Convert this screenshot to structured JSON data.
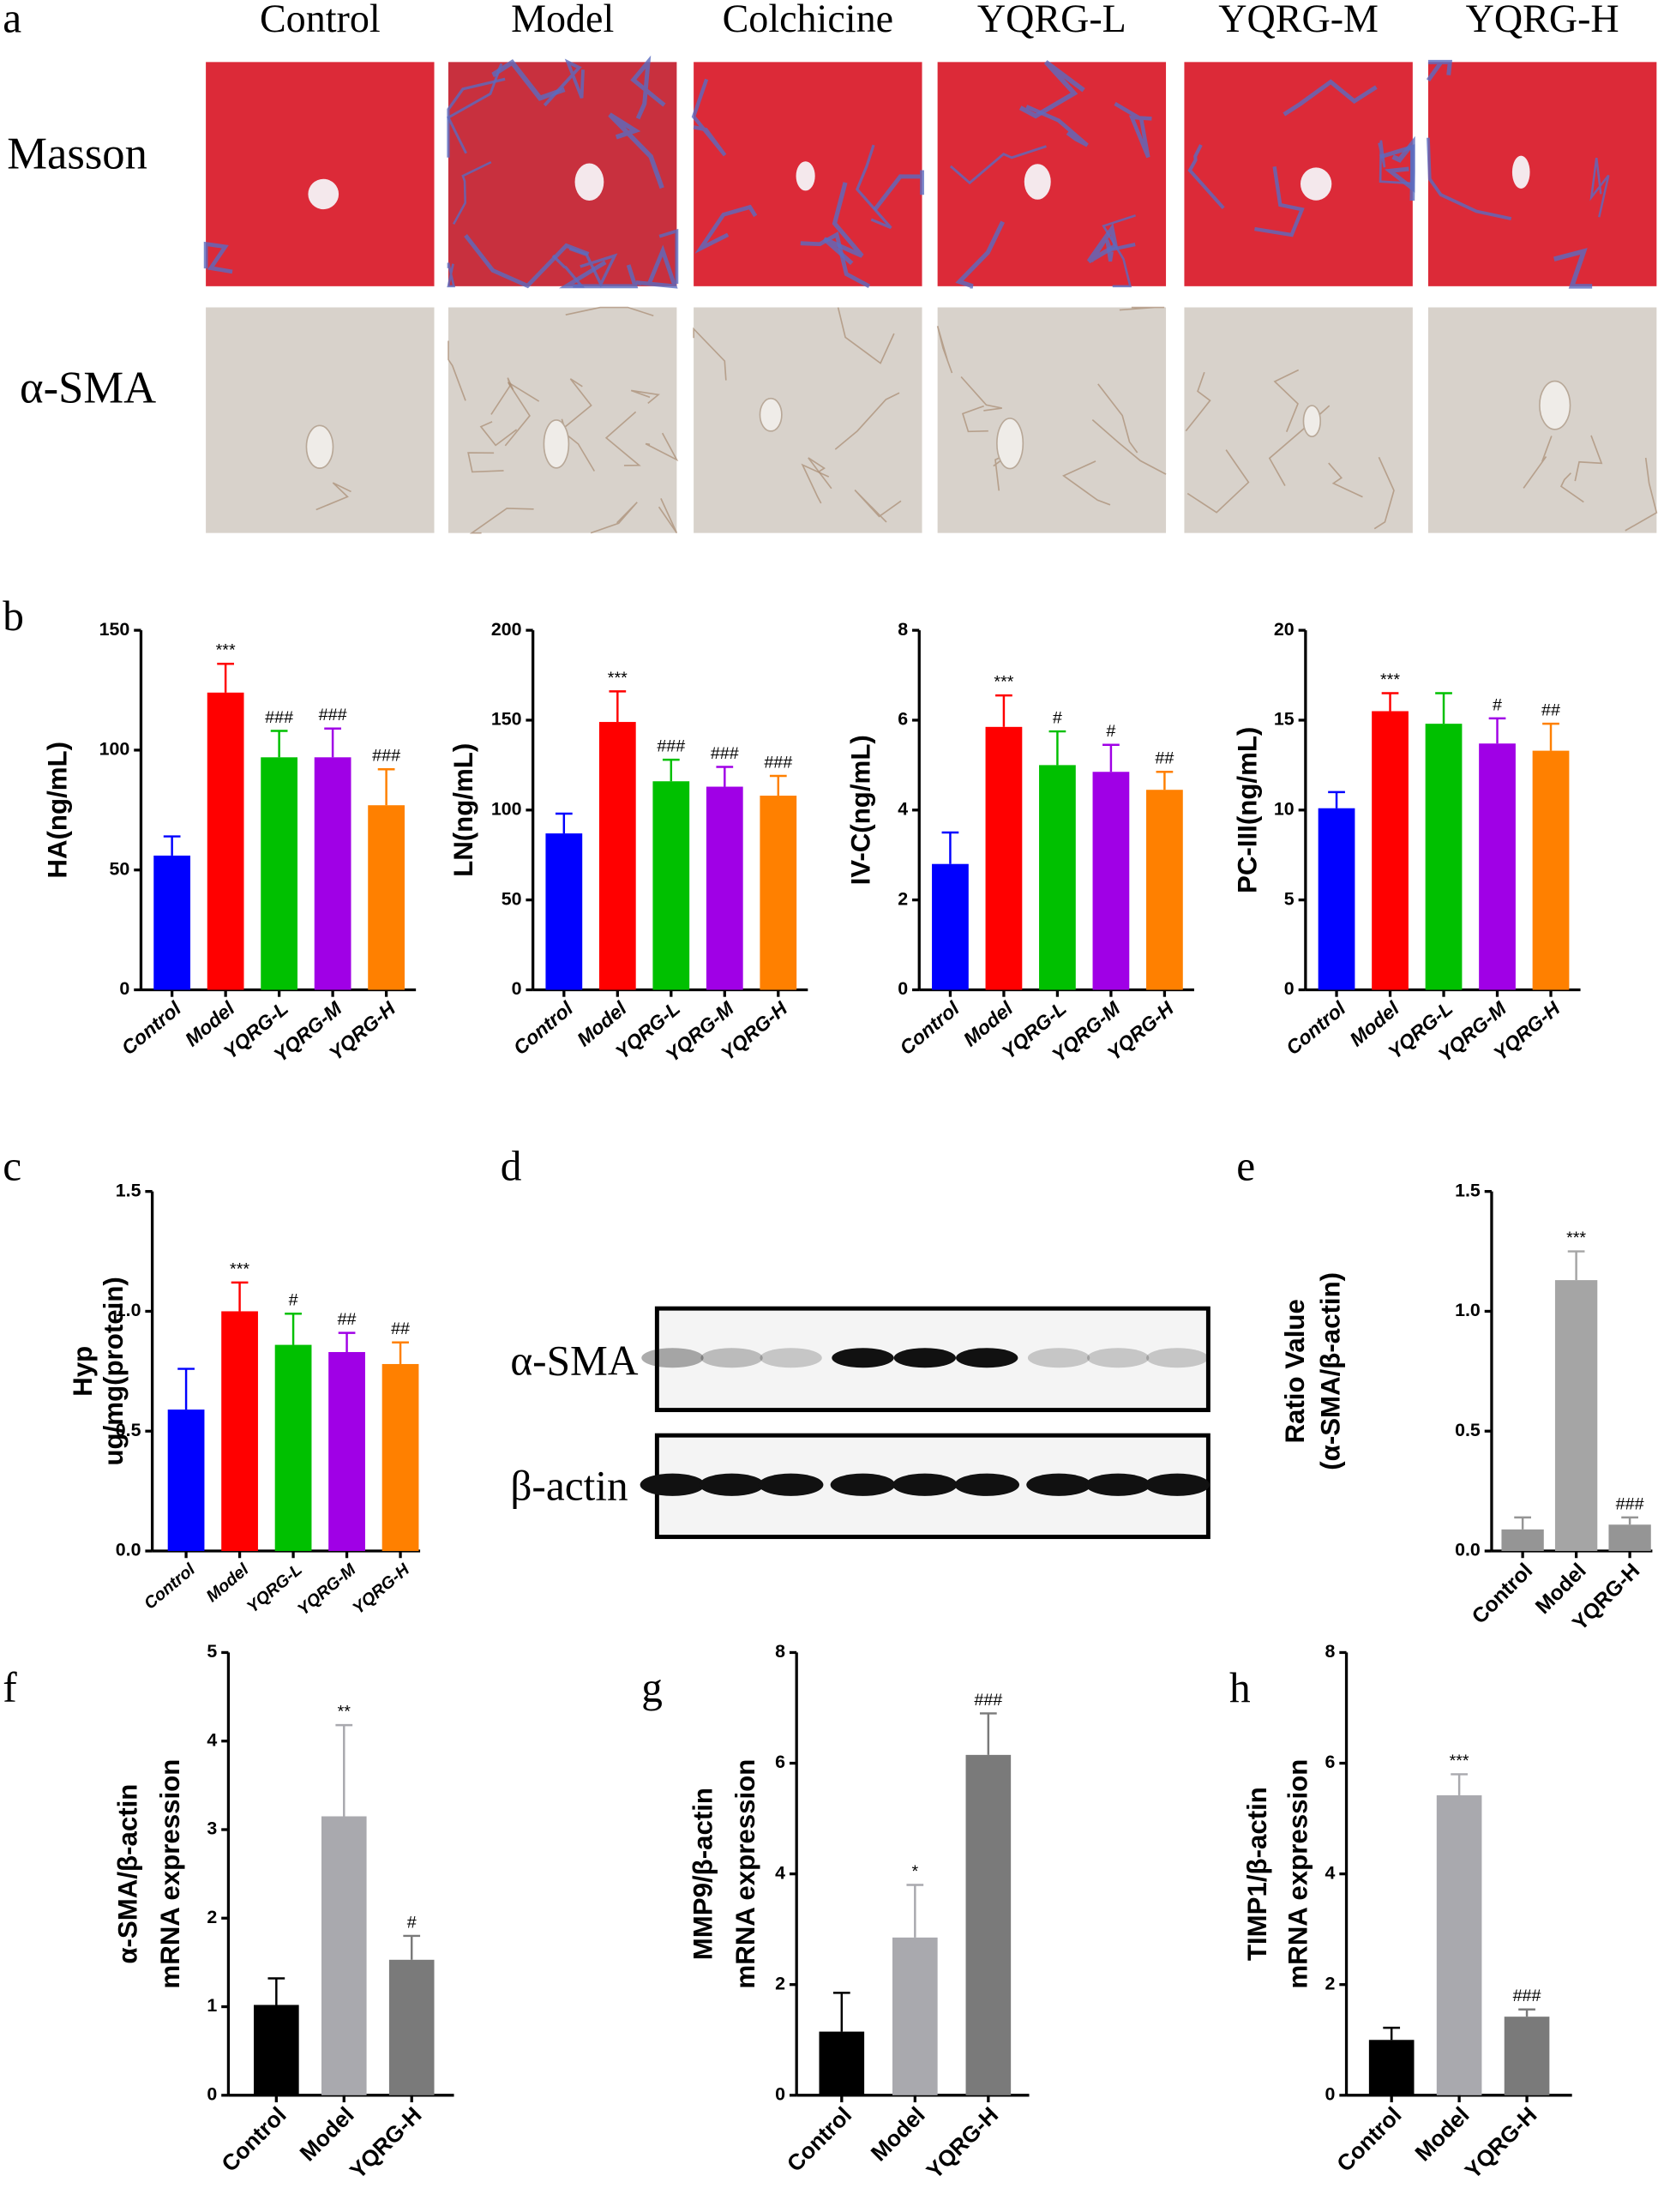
{
  "panel_labels": [
    "a",
    "b",
    "c",
    "d",
    "e",
    "f",
    "g",
    "h"
  ],
  "histology": {
    "columns": [
      "Control",
      "Model",
      "Colchicine",
      "YQRG-L",
      "YQRG-M",
      "YQRG-H"
    ],
    "rows": [
      "Masson",
      "α-SMA"
    ]
  },
  "western_blot": {
    "rows": [
      "α-SMA",
      "β-actin"
    ]
  },
  "chart_data": [
    {
      "type": "bar",
      "ylabel": [
        "HA(ng/mL)"
      ],
      "categories": [
        "Control",
        "Model",
        "YQRG-L",
        "YQRG-M",
        "YQRG-H"
      ],
      "values": [
        56,
        124,
        97,
        97,
        77
      ],
      "errors": [
        8,
        12,
        11,
        12,
        15
      ],
      "annotations": [
        null,
        "***",
        "###",
        "###",
        "###"
      ],
      "colors": [
        "#0000ff",
        "#ff0000",
        "#00c000",
        "#a000e6",
        "#ff8000"
      ],
      "ylim": [
        0,
        150
      ],
      "yticks": [
        0,
        50,
        100,
        150
      ]
    },
    {
      "type": "bar",
      "ylabel": [
        "LN(ng/mL)"
      ],
      "categories": [
        "Control",
        "Model",
        "YQRG-L",
        "YQRG-M",
        "YQRG-H"
      ],
      "values": [
        87,
        149,
        116,
        113,
        108
      ],
      "errors": [
        11,
        17,
        12,
        11,
        11
      ],
      "annotations": [
        null,
        "***",
        "###",
        "###",
        "###"
      ],
      "colors": [
        "#0000ff",
        "#ff0000",
        "#00c000",
        "#a000e6",
        "#ff8000"
      ],
      "ylim": [
        0,
        200
      ],
      "yticks": [
        0,
        50,
        100,
        150,
        200
      ]
    },
    {
      "type": "bar",
      "ylabel": [
        "IV-C(ng/mL)"
      ],
      "categories": [
        "Control",
        "Model",
        "YQRG-L",
        "YQRG-M",
        "YQRG-H"
      ],
      "values": [
        2.8,
        5.85,
        5.0,
        4.85,
        4.45
      ],
      "errors": [
        0.7,
        0.7,
        0.75,
        0.6,
        0.4
      ],
      "annotations": [
        null,
        "***",
        "#",
        "#",
        "##"
      ],
      "colors": [
        "#0000ff",
        "#ff0000",
        "#00c000",
        "#a000e6",
        "#ff8000"
      ],
      "ylim": [
        0,
        8
      ],
      "yticks": [
        0,
        2,
        4,
        6,
        8
      ]
    },
    {
      "type": "bar",
      "ylabel": [
        "PC-III(ng/mL)"
      ],
      "categories": [
        "Control",
        "Model",
        "YQRG-L",
        "YQRG-M",
        "YQRG-H"
      ],
      "values": [
        10.1,
        15.5,
        14.8,
        13.7,
        13.3
      ],
      "errors": [
        0.9,
        1.0,
        1.7,
        1.4,
        1.5
      ],
      "annotations": [
        null,
        "***",
        null,
        "#",
        "##"
      ],
      "colors": [
        "#0000ff",
        "#ff0000",
        "#00c000",
        "#a000e6",
        "#ff8000"
      ],
      "ylim": [
        0,
        20
      ],
      "yticks": [
        0,
        5,
        10,
        15,
        20
      ]
    },
    {
      "type": "bar",
      "ylabel": [
        "Hyp",
        "ug/mg(protein)"
      ],
      "categories": [
        "Control",
        "Model",
        "YQRG-L",
        "YQRG-M",
        "YQRG-H"
      ],
      "values": [
        0.59,
        1.0,
        0.86,
        0.83,
        0.78
      ],
      "errors": [
        0.17,
        0.12,
        0.13,
        0.08,
        0.09
      ],
      "annotations": [
        null,
        "***",
        "#",
        "##",
        "##"
      ],
      "colors": [
        "#0000ff",
        "#ff0000",
        "#00c000",
        "#a000e6",
        "#ff8000"
      ],
      "ylim": [
        0,
        1.5
      ],
      "yticks": [
        {
          "value": 0,
          "label": "0.0"
        },
        0.5,
        {
          "value": 1,
          "label": "1.0"
        },
        1.5
      ]
    },
    {
      "type": "bar",
      "ylabel": [
        "Ratio Value",
        "(α-SMA/β-actin)"
      ],
      "categories": [
        "Control",
        "Model",
        "YQRG-H"
      ],
      "values": [
        0.09,
        1.13,
        0.11
      ],
      "errors": [
        0.05,
        0.12,
        0.03
      ],
      "annotations": [
        null,
        "***",
        "###"
      ],
      "colors": [
        "#959595",
        "#a5a5a5",
        "#959595"
      ],
      "ylim": [
        0,
        1.5
      ],
      "yticks": [
        {
          "value": 0,
          "label": "0.0"
        },
        0.5,
        {
          "value": 1,
          "label": "1.0"
        },
        1.5
      ]
    },
    {
      "type": "bar",
      "ylabel": [
        "α-SMA/β-actin",
        "mRNA expression"
      ],
      "categories": [
        "Control",
        "Model",
        "YQRG-H"
      ],
      "values": [
        1.02,
        3.15,
        1.53
      ],
      "errors": [
        0.3,
        1.03,
        0.27
      ],
      "annotations": [
        null,
        "**",
        "#"
      ],
      "colors": [
        "#000000",
        "#a9a9ae",
        "#7a7a7a"
      ],
      "ylim": [
        0,
        5
      ],
      "yticks": [
        0,
        1,
        2,
        3,
        4,
        5
      ]
    },
    {
      "type": "bar",
      "ylabel": [
        "MMP9/β-actin",
        "mRNA expression"
      ],
      "categories": [
        "Control",
        "Model",
        "YQRG-H"
      ],
      "values": [
        1.15,
        2.85,
        6.15
      ],
      "errors": [
        0.7,
        0.95,
        0.75
      ],
      "annotations": [
        null,
        "*",
        "###"
      ],
      "colors": [
        "#000000",
        "#a9a9ae",
        "#7a7a7a"
      ],
      "ylim": [
        0,
        8
      ],
      "yticks": [
        0,
        2,
        4,
        6,
        8
      ]
    },
    {
      "type": "bar",
      "ylabel": [
        "TIMP1/β-actin",
        "mRNA expression"
      ],
      "categories": [
        "Control",
        "Model",
        "YQRG-H"
      ],
      "values": [
        1.0,
        5.42,
        1.42
      ],
      "errors": [
        0.22,
        0.38,
        0.13
      ],
      "annotations": [
        null,
        "***",
        "###"
      ],
      "colors": [
        "#000000",
        "#a9a9ae",
        "#7a7a7a"
      ],
      "ylim": [
        0,
        8
      ],
      "yticks": [
        0,
        2,
        4,
        6,
        8
      ]
    }
  ]
}
